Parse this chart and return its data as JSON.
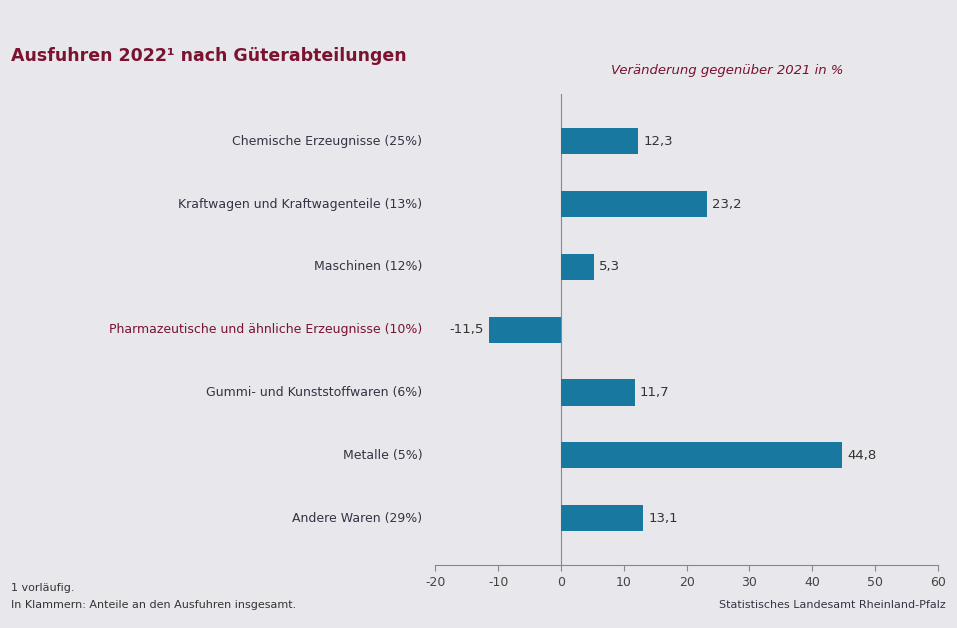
{
  "title": "Ausfuhren 2022¹ nach Güterabteilungen",
  "subtitle": "Veränderung gegenüber 2021 in %",
  "categories": [
    "Chemische Erzeugnisse (25%)",
    "Kraftwagen und Kraftwagenteile (13%)",
    "Maschinen (12%)",
    "Pharmazeutische und ähnliche Erzeugnisse (10%)",
    "Gummi- und Kunststoffwaren (6%)",
    "Metalle (5%)",
    "Andere Waren (29%)"
  ],
  "values": [
    12.3,
    23.2,
    5.3,
    -11.5,
    11.7,
    44.8,
    13.1
  ],
  "bar_color": "#1878a0",
  "title_color": "#7a1230",
  "subtitle_color": "#7a1230",
  "default_label_color": "#333344",
  "special_label_color": "#7a1230",
  "special_label_index": 3,
  "footer_left_line1": "1 vorläufig.",
  "footer_left_line2": "In Klammern: Anteile an den Ausfuhren insgesamt.",
  "footer_right": "Statistisches Landesamt Rheinland-Pfalz",
  "footer_right_color": "#333344",
  "bg_color": "#e8e8ec",
  "top_bar_color": "#7a1230",
  "xlim": [
    -20,
    60
  ],
  "xticks": [
    -20,
    -10,
    0,
    10,
    20,
    30,
    40,
    50,
    60
  ],
  "value_labels": [
    "12,3",
    "23,2",
    "5,3",
    "-11,5",
    "11,7",
    "44,8",
    "13,1"
  ],
  "fig_width": 9.57,
  "fig_height": 6.28
}
